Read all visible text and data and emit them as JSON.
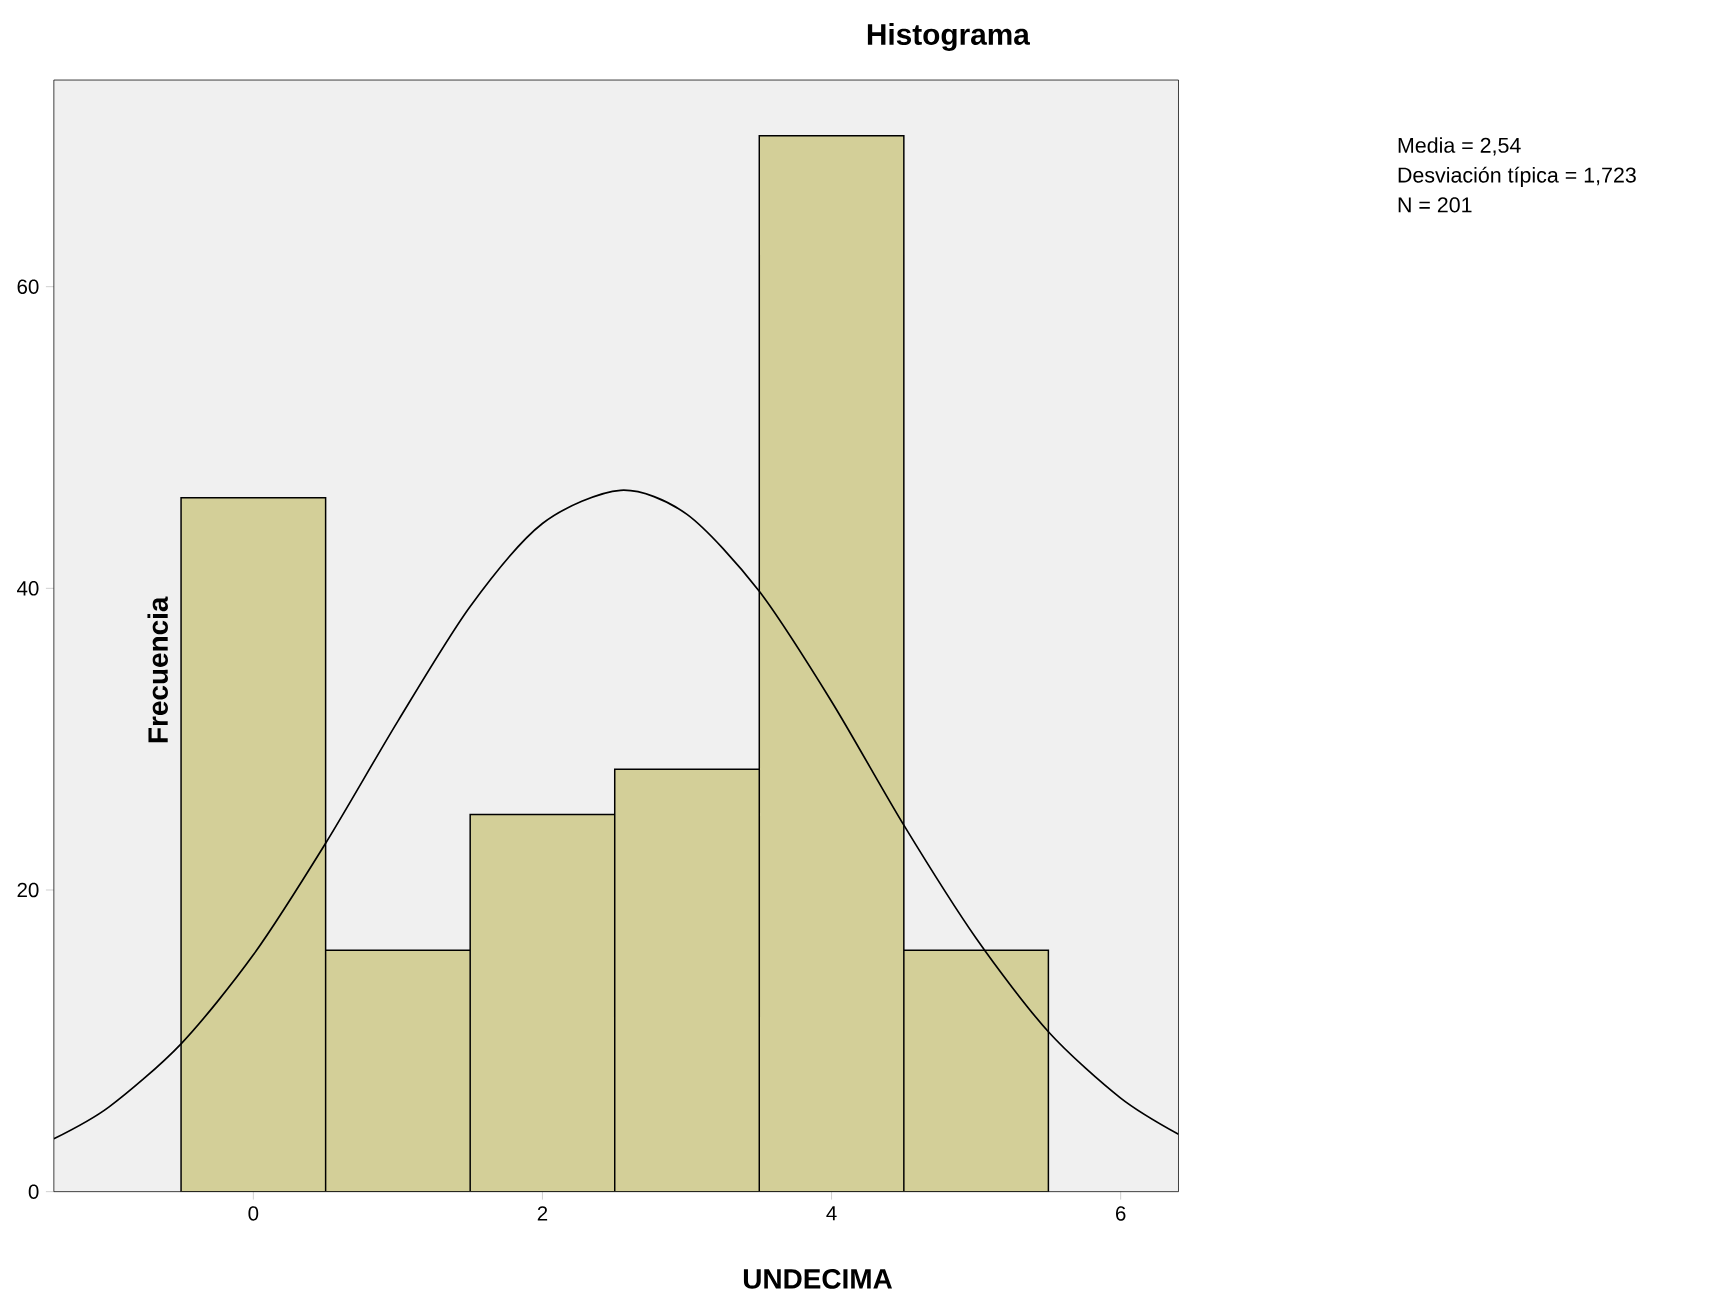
{
  "chart_data": {
    "type": "histogram",
    "title": "Histograma",
    "xlabel": "UNDECIMA",
    "ylabel": "Frecuencia",
    "bins": [
      -0.5,
      0.5,
      1.5,
      2.5,
      3.5,
      4.5,
      5.5
    ],
    "values": [
      46,
      16,
      25,
      28,
      70,
      16
    ],
    "color": "#d3cf98",
    "series": [
      {
        "type": "line",
        "color": "#000000",
        "x": [
          -1.38,
          -1,
          -0.5,
          0,
          0.5,
          1,
          1.5,
          2,
          2.54,
          3,
          3.5,
          4,
          4.5,
          5,
          5.5,
          6,
          6.4
        ],
        "values": [
          3.5,
          5.6,
          9.8,
          15.7,
          23.1,
          31.2,
          38.8,
          44.3,
          46.5,
          44.9,
          39.8,
          32.5,
          24.3,
          16.8,
          10.6,
          6.2,
          3.8
        ]
      }
    ],
    "xlim": [
      -1.38,
      6.4
    ],
    "ylim": [
      0,
      73.7
    ],
    "xticks": [
      0,
      2,
      4,
      6
    ],
    "yticks": [
      0,
      20,
      40,
      60
    ],
    "annotations": [
      "Media = 2,54",
      "Desviación típica = 1,723",
      "N = 201"
    ]
  }
}
